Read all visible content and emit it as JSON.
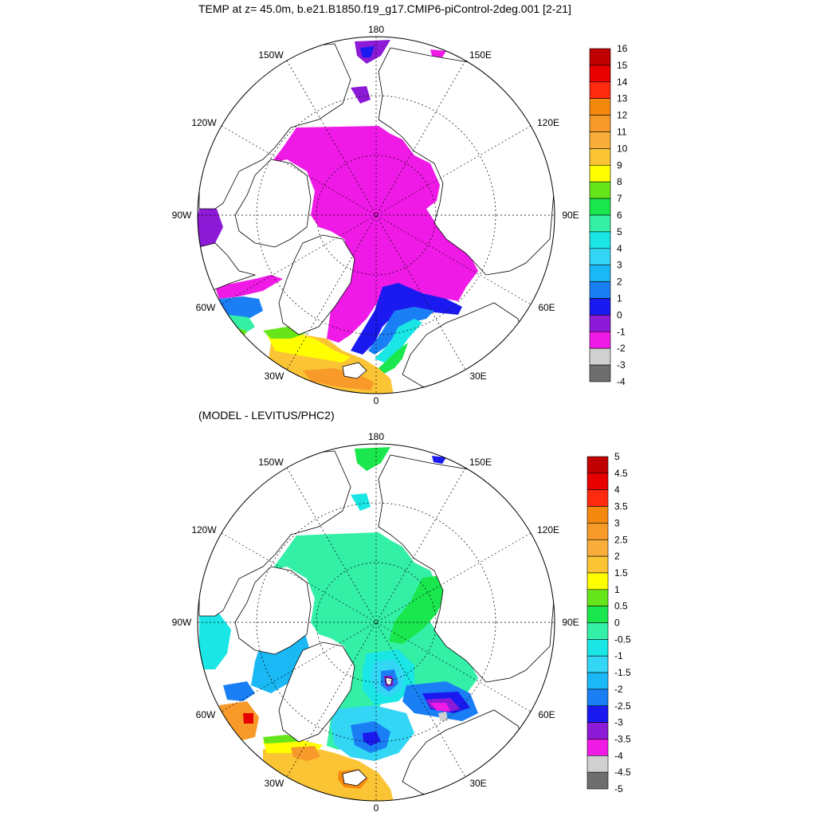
{
  "maps": [
    {
      "title": "TEMP at z=  45.0m, b.e21.B1850.f19_g17.CMIP6-piControl-2deg.001 [2-21]",
      "longitude_labels": [
        "180",
        "150W",
        "150E",
        "120W",
        "120E",
        "90W",
        "90E",
        "60W",
        "60E",
        "30W",
        "30E",
        "0"
      ],
      "colorbar": {
        "ticks": [
          "16",
          "15",
          "14",
          "13",
          "12",
          "11",
          "10",
          "9",
          "8",
          "7",
          "6",
          "5",
          "4",
          "3",
          "2",
          "1",
          "0",
          "-1",
          "-2",
          "-3",
          "-4"
        ],
        "colors": [
          "#c00000",
          "#e80000",
          "#ff2a10",
          "#f5890f",
          "#f79a2a",
          "#f9ad3a",
          "#fbc434",
          "#ffff00",
          "#66e61a",
          "#1ae64d",
          "#33f0a6",
          "#1ae6e6",
          "#33d6f5",
          "#1ab8f5",
          "#1a7ff5",
          "#1a1af0",
          "#8c1ad6",
          "#f01ae6",
          "#d0d0d0",
          "#6e6e6e"
        ]
      }
    },
    {
      "title": "(MODEL - LEVITUS/PHC2)",
      "longitude_labels": [
        "180",
        "150W",
        "150E",
        "120W",
        "120E",
        "90W",
        "90E",
        "60W",
        "60E",
        "30W",
        "30E",
        "0"
      ],
      "colorbar": {
        "ticks": [
          "5",
          "4.5",
          "4",
          "3.5",
          "3",
          "2.5",
          "2",
          "1.5",
          "1",
          "0.5",
          "0",
          "-0.5",
          "-1",
          "-1.5",
          "-2",
          "-2.5",
          "-3",
          "-3.5",
          "-4",
          "-4.5",
          "-5"
        ],
        "colors": [
          "#c00000",
          "#e80000",
          "#ff2a10",
          "#f5890f",
          "#f79a2a",
          "#f9ad3a",
          "#fbc434",
          "#ffff00",
          "#66e61a",
          "#1ae64d",
          "#33f0a6",
          "#1ae6e6",
          "#33d6f5",
          "#1ab8f5",
          "#1a7ff5",
          "#1a1af0",
          "#8c1ad6",
          "#f01ae6",
          "#d0d0d0",
          "#6e6e6e"
        ]
      }
    }
  ],
  "palette": {
    "magenta": "#f01ae6",
    "purple": "#8c1ad6",
    "blue": "#1a1af0",
    "midblue": "#1a7ff5",
    "lightblue": "#33d6f5",
    "cyan": "#1ae6e6",
    "aqua": "#33f0a6",
    "green": "#1ae64d",
    "lime": "#66e61a",
    "yellow": "#ffff00",
    "gold": "#fbc434",
    "orange": "#f79a2a",
    "red": "#e80000",
    "gray": "#d0d0d0"
  }
}
